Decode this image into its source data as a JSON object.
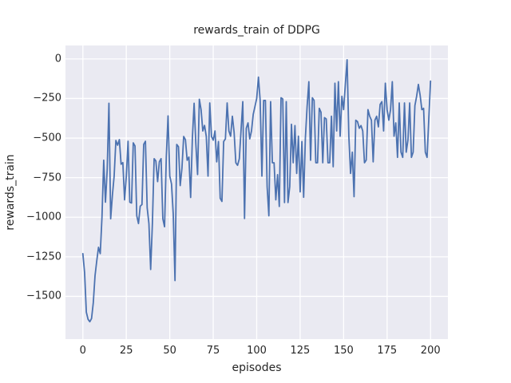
{
  "title": "rewards_train of DDPG",
  "axes": {
    "xlabel": "episodes",
    "ylabel": "rewards_train"
  },
  "colors": {
    "figure_background": "#FFFFFF",
    "plot_background": "#EAEAF2",
    "gridline": "#FFFFFF",
    "line": "#4C72B0",
    "text": "#262626"
  },
  "chart_data": {
    "type": "line",
    "title": "rewards_train of DDPG",
    "xlabel": "episodes",
    "ylabel": "rewards_train",
    "grid": true,
    "legend": "none",
    "xlim": [
      -10,
      210
    ],
    "ylim": [
      -1770,
      85
    ],
    "x_tick_labels": [
      0,
      25,
      50,
      75,
      100,
      125,
      150,
      175,
      200
    ],
    "y_tick_labels": [
      0,
      -250,
      -500,
      -750,
      -1000,
      -1250,
      -1500
    ],
    "series": [
      {
        "name": "rewards_train",
        "color": "#4C72B0",
        "x": {
          "start": 0,
          "step": 1,
          "count": 201
        },
        "y": [
          -1230,
          -1350,
          -1600,
          -1645,
          -1660,
          -1640,
          -1540,
          -1370,
          -1275,
          -1190,
          -1230,
          -1000,
          -640,
          -905,
          -700,
          -280,
          -1010,
          -860,
          -740,
          -515,
          -545,
          -510,
          -665,
          -655,
          -890,
          -740,
          -520,
          -905,
          -910,
          -530,
          -550,
          -990,
          -1040,
          -930,
          -920,
          -540,
          -520,
          -940,
          -1040,
          -1330,
          -1040,
          -630,
          -645,
          -775,
          -650,
          -630,
          -1010,
          -1060,
          -620,
          -360,
          -740,
          -790,
          -980,
          -1400,
          -540,
          -555,
          -800,
          -690,
          -490,
          -510,
          -640,
          -620,
          -875,
          -500,
          -280,
          -540,
          -730,
          -255,
          -320,
          -455,
          -420,
          -490,
          -740,
          -278,
          -490,
          -513,
          -455,
          -650,
          -522,
          -880,
          -900,
          -522,
          -505,
          -278,
          -455,
          -488,
          -362,
          -463,
          -656,
          -672,
          -631,
          -450,
          -270,
          -1008,
          -438,
          -404,
          -505,
          -455,
          -350,
          -300,
          -250,
          -115,
          -262,
          -740,
          -262,
          -262,
          -807,
          -991,
          -270,
          -656,
          -656,
          -890,
          -731,
          -932,
          -245,
          -253,
          -907,
          -270,
          -907,
          -807,
          -413,
          -656,
          -421,
          -723,
          -488,
          -840,
          -522,
          -874,
          -500,
          -300,
          -144,
          -640,
          -245,
          -262,
          -656,
          -656,
          -312,
          -337,
          -656,
          -371,
          -379,
          -656,
          -656,
          -362,
          -681,
          -153,
          -455,
          -144,
          -488,
          -236,
          -320,
          -160,
          -5,
          -488,
          -723,
          -589,
          -870,
          -387,
          -396,
          -438,
          -421,
          -455,
          -656,
          -639,
          -320,
          -362,
          -387,
          -650,
          -387,
          -362,
          -429,
          -287,
          -270,
          -455,
          -153,
          -320,
          -387,
          -320,
          -144,
          -488,
          -404,
          -622,
          -278,
          -589,
          -622,
          -278,
          -589,
          -513,
          -278,
          -622,
          -589,
          -295,
          -236,
          -161,
          -228,
          -320,
          -312,
          -589,
          -622,
          -379,
          -140
        ]
      }
    ]
  }
}
